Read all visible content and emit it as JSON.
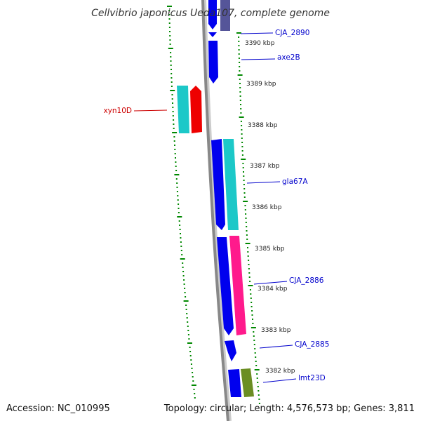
{
  "title": "Cellvibrio japonicus Ueda107, complete genome",
  "footer": {
    "accession": "Accession: NC_010995",
    "topology": "Topology: circular; Length: 4,576,573 bp; Genes: 3,811"
  },
  "colors": {
    "blue": "#0000ee",
    "cyan": "#1cc8c8",
    "red": "#ee0000",
    "magenta": "#ff1a8c",
    "olive": "#6b8e23",
    "slate": "#555599",
    "tick_green": "#008800",
    "label_blue": "#0000cc",
    "label_red": "#cc0000",
    "backbone": "#888888"
  },
  "kbp_labels": [
    "3390 kbp",
    "3389 kbp",
    "3388 kbp",
    "3387 kbp",
    "3386 kbp",
    "3385 kbp",
    "3384 kbp",
    "3383 kbp",
    "3382 kbp"
  ],
  "genes": [
    {
      "name": "CJA_2890",
      "color": "blue"
    },
    {
      "name": "axe2B",
      "color": "blue"
    },
    {
      "name": "xyn10D",
      "color": "red"
    },
    {
      "name": "gla67A",
      "color": "blue"
    },
    {
      "name": "CJA_2886",
      "color": "blue"
    },
    {
      "name": "CJA_2885",
      "color": "blue"
    },
    {
      "name": "lmt23D",
      "color": "blue"
    }
  ]
}
